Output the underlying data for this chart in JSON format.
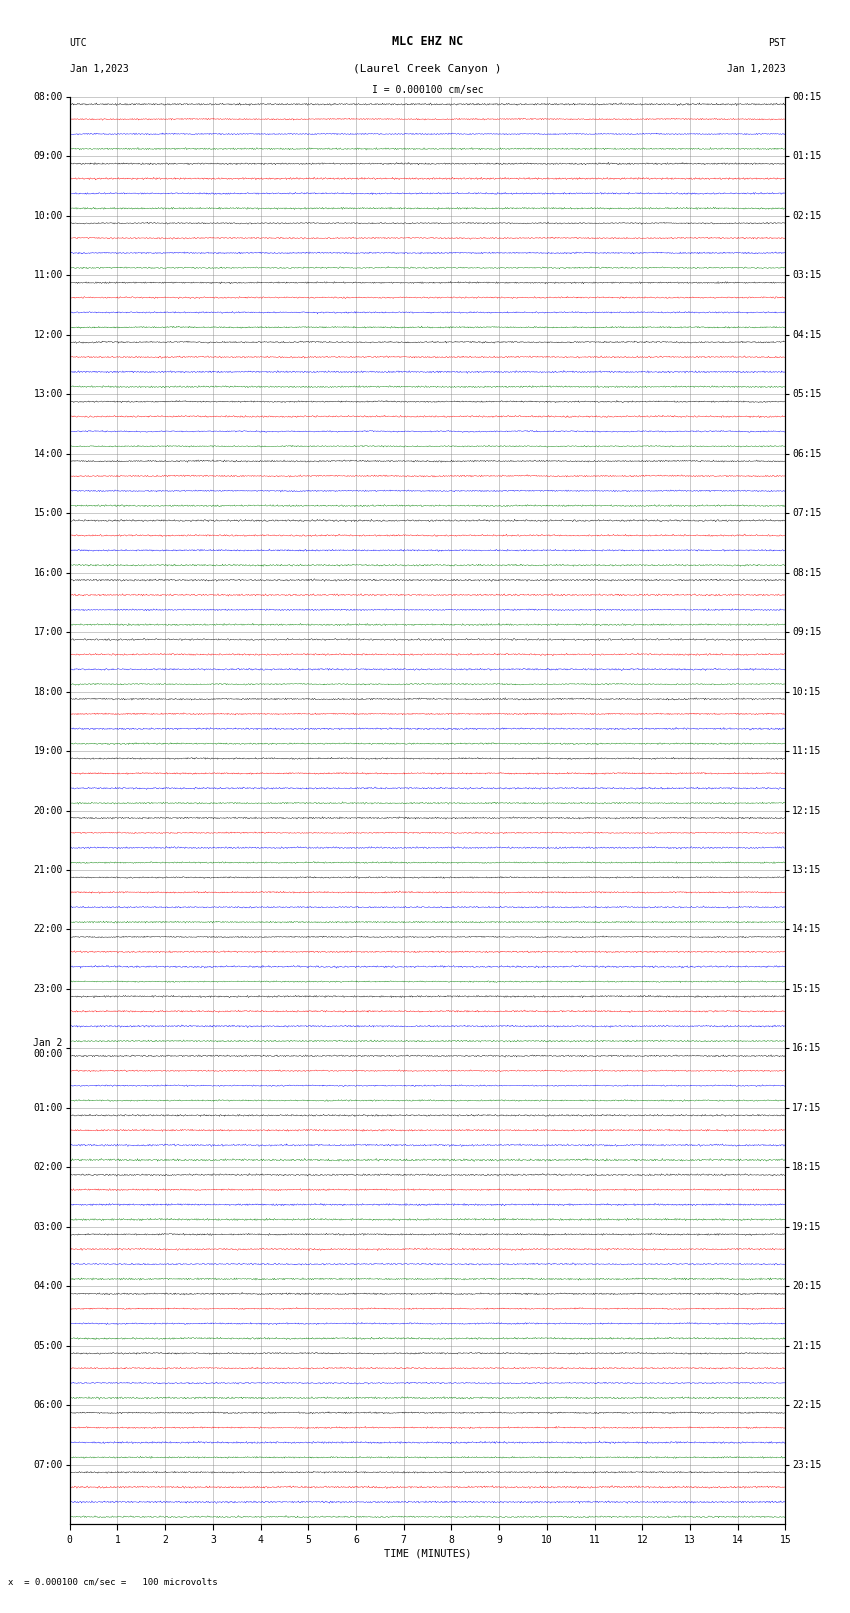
{
  "title_line1": "MLC EHZ NC",
  "title_line2": "(Laurel Creek Canyon )",
  "scale_label": "I = 0.000100 cm/sec",
  "bottom_label": "x  = 0.000100 cm/sec =   100 microvolts",
  "utc_label": "UTC",
  "utc_date": "Jan 1,2023",
  "pst_label": "PST",
  "pst_date": "Jan 1,2023",
  "xlabel": "TIME (MINUTES)",
  "left_times": [
    "08:00",
    "09:00",
    "10:00",
    "11:00",
    "12:00",
    "13:00",
    "14:00",
    "15:00",
    "16:00",
    "17:00",
    "18:00",
    "19:00",
    "20:00",
    "21:00",
    "22:00",
    "23:00",
    "Jan 2\n00:00",
    "01:00",
    "02:00",
    "03:00",
    "04:00",
    "05:00",
    "06:00",
    "07:00"
  ],
  "right_times": [
    "00:15",
    "01:15",
    "02:15",
    "03:15",
    "04:15",
    "05:15",
    "06:15",
    "07:15",
    "08:15",
    "09:15",
    "10:15",
    "11:15",
    "12:15",
    "13:15",
    "14:15",
    "15:15",
    "16:15",
    "17:15",
    "18:15",
    "19:15",
    "20:15",
    "21:15",
    "22:15",
    "23:15"
  ],
  "n_rows": 24,
  "n_traces_per_row": 4,
  "minutes_per_row": 15,
  "colors": [
    "black",
    "red",
    "blue",
    "green"
  ],
  "bg_color": "white",
  "grid_color": "#888888",
  "title_fontsize": 8.5,
  "tick_fontsize": 7.0,
  "noise_amplitude": 0.28
}
